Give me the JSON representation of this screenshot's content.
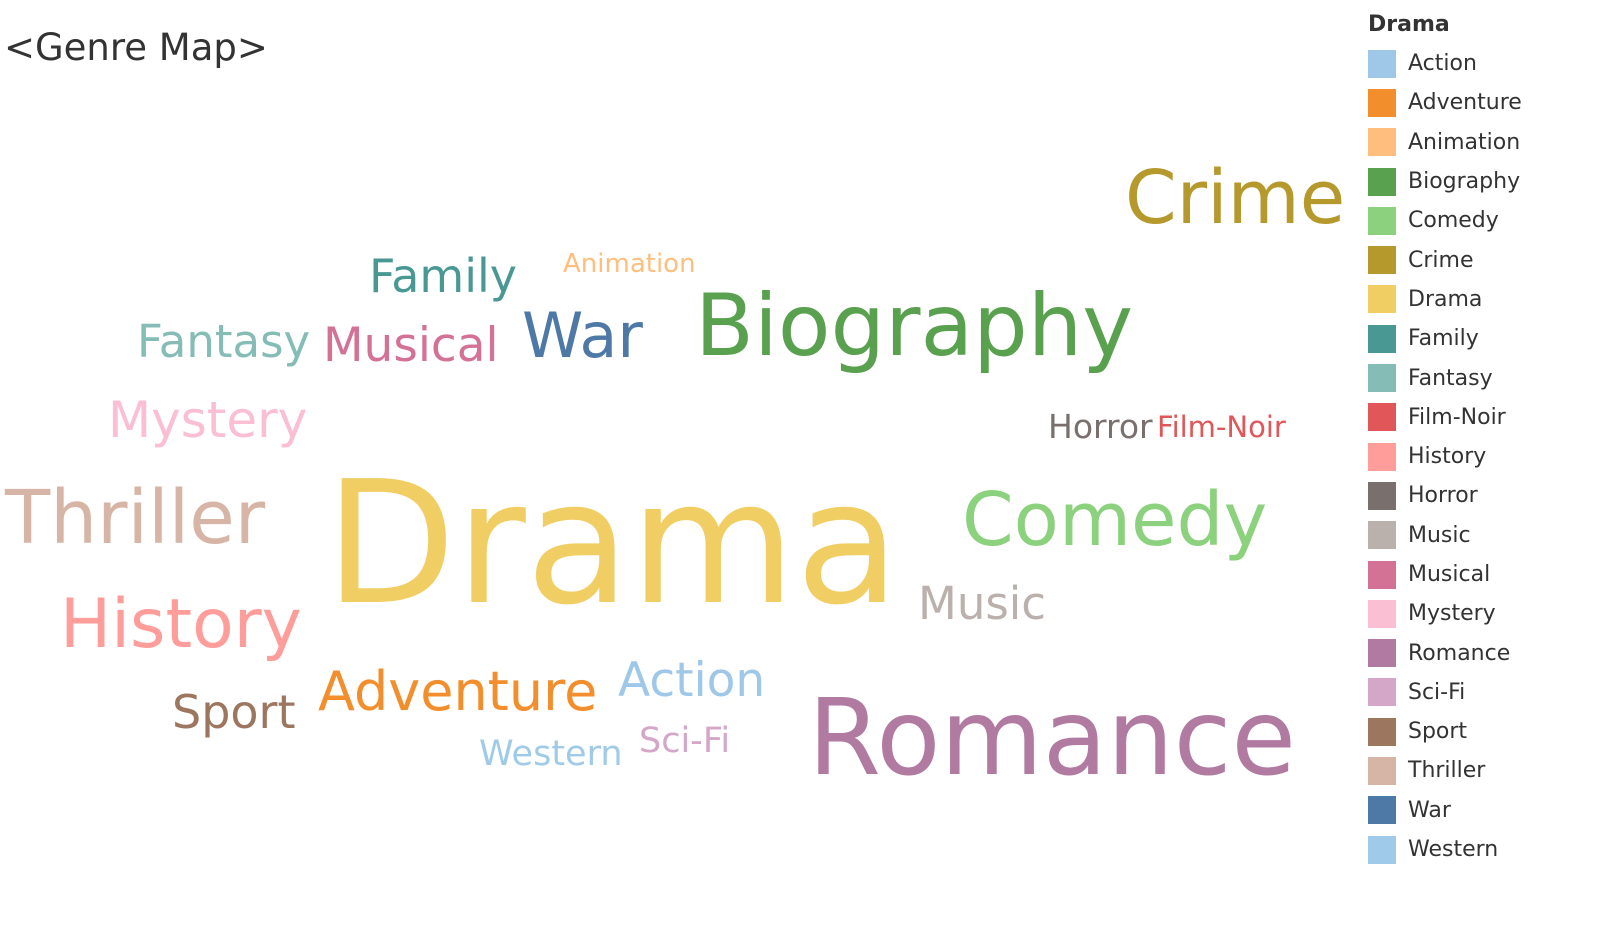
{
  "title": "<Genre Map>",
  "legend": {
    "title": "Drama",
    "items": [
      {
        "label": "Action",
        "color": "#9fc8e8"
      },
      {
        "label": "Adventure",
        "color": "#f28e2b"
      },
      {
        "label": "Animation",
        "color": "#ffbe7d"
      },
      {
        "label": "Biography",
        "color": "#59a14f"
      },
      {
        "label": "Comedy",
        "color": "#8cd17d"
      },
      {
        "label": "Crime",
        "color": "#b6992d"
      },
      {
        "label": "Drama",
        "color": "#f1ce63"
      },
      {
        "label": "Family",
        "color": "#499894"
      },
      {
        "label": "Fantasy",
        "color": "#86bcb6"
      },
      {
        "label": "Film-Noir",
        "color": "#e15759"
      },
      {
        "label": "History",
        "color": "#ff9d9a"
      },
      {
        "label": "Horror",
        "color": "#79706e"
      },
      {
        "label": "Music",
        "color": "#bab0ac"
      },
      {
        "label": "Musical",
        "color": "#d37295"
      },
      {
        "label": "Mystery",
        "color": "#fabfd2"
      },
      {
        "label": "Romance",
        "color": "#b07aa1"
      },
      {
        "label": "Sci-Fi",
        "color": "#d4a6c8"
      },
      {
        "label": "Sport",
        "color": "#9d7660"
      },
      {
        "label": "Thriller",
        "color": "#d7b5a6"
      },
      {
        "label": "War",
        "color": "#4e79a7"
      },
      {
        "label": "Western",
        "color": "#a0cbe8"
      }
    ]
  },
  "chart_data": {
    "type": "word_cloud",
    "title": "<Genre Map>",
    "words": [
      {
        "text": "Drama",
        "color": "#f1ce63",
        "weight": 100
      },
      {
        "text": "Romance",
        "color": "#b07aa1",
        "weight": 72
      },
      {
        "text": "Biography",
        "color": "#59a14f",
        "weight": 62
      },
      {
        "text": "Crime",
        "color": "#b6992d",
        "weight": 52
      },
      {
        "text": "Comedy",
        "color": "#8cd17d",
        "weight": 58
      },
      {
        "text": "Thriller",
        "color": "#d7b5a6",
        "weight": 55
      },
      {
        "text": "History",
        "color": "#ff9d9a",
        "weight": 52
      },
      {
        "text": "War",
        "color": "#4e79a7",
        "weight": 45
      },
      {
        "text": "Adventure",
        "color": "#f28e2b",
        "weight": 40
      },
      {
        "text": "Action",
        "color": "#9fc8e8",
        "weight": 36
      },
      {
        "text": "Musical",
        "color": "#d37295",
        "weight": 35
      },
      {
        "text": "Mystery",
        "color": "#fabfd2",
        "weight": 37
      },
      {
        "text": "Fantasy",
        "color": "#86bcb6",
        "weight": 35
      },
      {
        "text": "Family",
        "color": "#499894",
        "weight": 34
      },
      {
        "text": "Sport",
        "color": "#9d7660",
        "weight": 37
      },
      {
        "text": "Music",
        "color": "#bab0ac",
        "weight": 34
      },
      {
        "text": "Western",
        "color": "#a0cbe8",
        "weight": 28
      },
      {
        "text": "Sci-Fi",
        "color": "#d4a6c8",
        "weight": 28
      },
      {
        "text": "Horror",
        "color": "#79706e",
        "weight": 27
      },
      {
        "text": "Film-Noir",
        "color": "#e15759",
        "weight": 23
      },
      {
        "text": "Animation",
        "color": "#ffbe7d",
        "weight": 20
      }
    ]
  }
}
